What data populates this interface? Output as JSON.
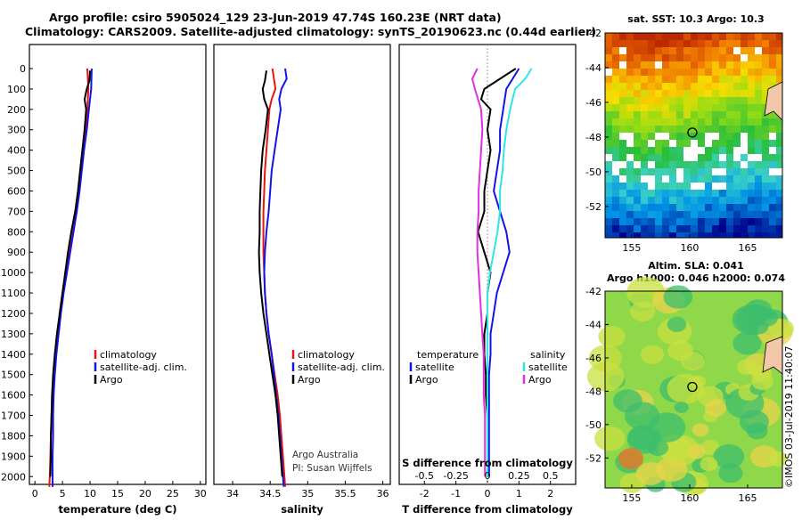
{
  "title_line1": "Argo profile: csiro 5905024_129 23-Jun-2019 47.74S 160.23E (NRT data)",
  "title_line2": "Climatology: CARS2009. Satellite-adjusted climatology: synTS_20190623.nc (0.44d earlier)",
  "colors": {
    "climatology": "#e8140f",
    "satellite": "#1414e6",
    "argo": "#000000",
    "salinity_sat": "#2de6e6",
    "salinity_argo": "#e030e0"
  },
  "depth_ticks": [
    "0",
    "100",
    "200",
    "300",
    "400",
    "500",
    "600",
    "700",
    "800",
    "900",
    "1000",
    "1100",
    "1200",
    "1300",
    "1400",
    "1500",
    "1600",
    "1700",
    "1800",
    "1900",
    "2000"
  ],
  "credit": {
    "line1": "Argo Australia",
    "line2": "PI: Susan Wijffels"
  },
  "watermark": "©IMOS 03-Jul-2019 11:40:07",
  "chart_data": [
    {
      "type": "line",
      "panel": "temperature",
      "xlabel": "temperature (deg C)",
      "ylabel": "",
      "xlim": [
        -1,
        31
      ],
      "ylim": [
        2060,
        0
      ],
      "xticks": [
        "0",
        "5",
        "10",
        "15",
        "20",
        "25",
        "30"
      ],
      "legend": [
        "climatology",
        "satellite-adj. clim.",
        "Argo"
      ],
      "series": [
        {
          "name": "climatology",
          "values": [
            [
              9.5,
              0
            ],
            [
              9.7,
              100
            ],
            [
              9.5,
              200
            ],
            [
              9.2,
              300
            ],
            [
              8.8,
              400
            ],
            [
              8.4,
              500
            ],
            [
              8.0,
              600
            ],
            [
              7.5,
              700
            ],
            [
              6.9,
              800
            ],
            [
              6.3,
              900
            ],
            [
              5.6,
              1000
            ],
            [
              5.0,
              1100
            ],
            [
              4.5,
              1200
            ],
            [
              4.1,
              1300
            ],
            [
              3.7,
              1400
            ],
            [
              3.4,
              1500
            ],
            [
              3.2,
              1600
            ],
            [
              3.0,
              1700
            ],
            [
              2.9,
              1800
            ],
            [
              2.8,
              1900
            ],
            [
              2.7,
              2000
            ],
            [
              2.6,
              2050
            ]
          ]
        },
        {
          "name": "satellite-adj. clim.",
          "values": [
            [
              10.3,
              0
            ],
            [
              10.2,
              100
            ],
            [
              9.8,
              200
            ],
            [
              9.4,
              300
            ],
            [
              8.9,
              400
            ],
            [
              8.5,
              500
            ],
            [
              8.1,
              600
            ],
            [
              7.6,
              700
            ],
            [
              7.0,
              800
            ],
            [
              6.4,
              900
            ],
            [
              5.8,
              1000
            ],
            [
              5.2,
              1100
            ],
            [
              4.7,
              1200
            ],
            [
              4.3,
              1300
            ],
            [
              3.9,
              1400
            ],
            [
              3.6,
              1500
            ],
            [
              3.4,
              1600
            ],
            [
              3.3,
              1700
            ],
            [
              3.3,
              1800
            ],
            [
              3.2,
              1900
            ],
            [
              3.2,
              2000
            ],
            [
              3.2,
              2050
            ]
          ]
        },
        {
          "name": "Argo",
          "values": [
            [
              10.0,
              10
            ],
            [
              9.9,
              60
            ],
            [
              9.4,
              100
            ],
            [
              9.0,
              150
            ],
            [
              9.3,
              200
            ],
            [
              9.0,
              300
            ],
            [
              8.6,
              400
            ],
            [
              8.2,
              500
            ],
            [
              7.8,
              600
            ],
            [
              7.3,
              700
            ],
            [
              6.6,
              800
            ],
            [
              6.0,
              900
            ],
            [
              5.5,
              1000
            ],
            [
              5.0,
              1100
            ],
            [
              4.5,
              1200
            ],
            [
              4.0,
              1300
            ],
            [
              3.6,
              1400
            ],
            [
              3.3,
              1500
            ],
            [
              3.1,
              1600
            ],
            [
              3.0,
              1700
            ],
            [
              2.9,
              1800
            ],
            [
              2.9,
              1900
            ],
            [
              2.8,
              2000
            ]
          ]
        }
      ]
    },
    {
      "type": "line",
      "panel": "salinity",
      "xlabel": "salinity",
      "ylabel": "",
      "xlim": [
        33.75,
        36.1
      ],
      "ylim": [
        2060,
        0
      ],
      "xticks": [
        "34",
        "34.5",
        "35",
        "35.5",
        "36"
      ],
      "legend": [
        "climatology",
        "satellite-adj. clim.",
        "Argo"
      ],
      "series": [
        {
          "name": "climatology",
          "values": [
            [
              34.53,
              0
            ],
            [
              34.57,
              100
            ],
            [
              34.52,
              150
            ],
            [
              34.49,
              200
            ],
            [
              34.47,
              300
            ],
            [
              34.45,
              400
            ],
            [
              34.43,
              500
            ],
            [
              34.42,
              600
            ],
            [
              34.41,
              700
            ],
            [
              34.41,
              800
            ],
            [
              34.41,
              900
            ],
            [
              34.42,
              1000
            ],
            [
              34.43,
              1100
            ],
            [
              34.45,
              1200
            ],
            [
              34.48,
              1300
            ],
            [
              34.52,
              1400
            ],
            [
              34.56,
              1500
            ],
            [
              34.6,
              1600
            ],
            [
              34.63,
              1700
            ],
            [
              34.65,
              1800
            ],
            [
              34.67,
              1900
            ],
            [
              34.69,
              2000
            ],
            [
              34.7,
              2050
            ]
          ]
        },
        {
          "name": "satellite-adj. clim.",
          "values": [
            [
              34.7,
              0
            ],
            [
              34.72,
              50
            ],
            [
              34.65,
              100
            ],
            [
              34.62,
              150
            ],
            [
              34.64,
              200
            ],
            [
              34.6,
              300
            ],
            [
              34.56,
              400
            ],
            [
              34.52,
              500
            ],
            [
              34.5,
              600
            ],
            [
              34.48,
              700
            ],
            [
              34.45,
              800
            ],
            [
              34.43,
              900
            ],
            [
              34.42,
              1000
            ],
            [
              34.43,
              1100
            ],
            [
              34.45,
              1200
            ],
            [
              34.48,
              1300
            ],
            [
              34.52,
              1400
            ],
            [
              34.55,
              1500
            ],
            [
              34.58,
              1600
            ],
            [
              34.61,
              1700
            ],
            [
              34.63,
              1800
            ],
            [
              34.65,
              1900
            ],
            [
              34.67,
              2000
            ],
            [
              34.68,
              2050
            ]
          ]
        },
        {
          "name": "Argo",
          "values": [
            [
              34.45,
              10
            ],
            [
              34.43,
              60
            ],
            [
              34.4,
              100
            ],
            [
              34.42,
              150
            ],
            [
              34.47,
              200
            ],
            [
              34.44,
              300
            ],
            [
              34.4,
              400
            ],
            [
              34.38,
              500
            ],
            [
              34.37,
              600
            ],
            [
              34.36,
              700
            ],
            [
              34.36,
              800
            ],
            [
              34.35,
              900
            ],
            [
              34.36,
              1000
            ],
            [
              34.38,
              1100
            ],
            [
              34.41,
              1200
            ],
            [
              34.45,
              1300
            ],
            [
              34.49,
              1400
            ],
            [
              34.53,
              1500
            ],
            [
              34.57,
              1600
            ],
            [
              34.6,
              1700
            ],
            [
              34.62,
              1800
            ],
            [
              34.64,
              1900
            ],
            [
              34.66,
              2000
            ]
          ]
        }
      ]
    },
    {
      "type": "line",
      "panel": "difference",
      "xlabel": "T difference from climatology",
      "ylabel": "",
      "xlabel2": "S difference from climatology",
      "xlim": [
        -2.8,
        2.8
      ],
      "ylim": [
        2060,
        0
      ],
      "xticks": [
        "-2",
        "-1",
        "0",
        "1",
        "2"
      ],
      "xticks2": [
        "-0.5",
        "-0.25",
        "0",
        "0.25",
        "0.5"
      ],
      "legend_left_title": "temperature",
      "legend_right_title": "salinity",
      "legend": [
        "satellite",
        "Argo",
        "satellite",
        "Argo"
      ],
      "series": [
        {
          "name": "satellite",
          "quantity": "temperature",
          "values": [
            [
              1.0,
              0
            ],
            [
              0.8,
              50
            ],
            [
              0.6,
              100
            ],
            [
              0.5,
              200
            ],
            [
              0.4,
              300
            ],
            [
              0.4,
              400
            ],
            [
              0.3,
              500
            ],
            [
              0.2,
              600
            ],
            [
              0.4,
              700
            ],
            [
              0.6,
              800
            ],
            [
              0.7,
              900
            ],
            [
              0.5,
              1000
            ],
            [
              0.3,
              1100
            ],
            [
              0.2,
              1200
            ],
            [
              0.1,
              1300
            ],
            [
              0.1,
              1400
            ],
            [
              0.05,
              1500
            ],
            [
              0.05,
              1600
            ],
            [
              0.05,
              1700
            ],
            [
              0.05,
              1800
            ],
            [
              0.05,
              1900
            ],
            [
              0.05,
              2000
            ]
          ]
        },
        {
          "name": "Argo",
          "quantity": "temperature",
          "values": [
            [
              0.9,
              0
            ],
            [
              0.4,
              50
            ],
            [
              -0.1,
              100
            ],
            [
              -0.2,
              150
            ],
            [
              0.1,
              200
            ],
            [
              0.0,
              300
            ],
            [
              0.1,
              400
            ],
            [
              0.0,
              500
            ],
            [
              -0.1,
              600
            ],
            [
              -0.1,
              700
            ],
            [
              -0.3,
              800
            ],
            [
              -0.1,
              900
            ],
            [
              0.1,
              1000
            ],
            [
              0.0,
              1100
            ],
            [
              0.0,
              1200
            ],
            [
              -0.1,
              1300
            ],
            [
              -0.1,
              1400
            ],
            [
              -0.05,
              1500
            ],
            [
              -0.05,
              1600
            ],
            [
              0.0,
              1700
            ],
            [
              0.0,
              1800
            ],
            [
              0.0,
              1900
            ],
            [
              0.0,
              2000
            ]
          ]
        },
        {
          "name": "satellite",
          "quantity": "salinity",
          "values": [
            [
              0.35,
              0
            ],
            [
              0.3,
              50
            ],
            [
              0.22,
              100
            ],
            [
              0.18,
              200
            ],
            [
              0.15,
              300
            ],
            [
              0.13,
              400
            ],
            [
              0.12,
              500
            ],
            [
              0.1,
              600
            ],
            [
              0.1,
              700
            ],
            [
              0.08,
              800
            ],
            [
              0.05,
              900
            ],
            [
              0.02,
              1000
            ],
            [
              0.0,
              1100
            ],
            [
              0.0,
              1200
            ],
            [
              0.0,
              1300
            ],
            [
              0.0,
              1400
            ],
            [
              0.0,
              1500
            ],
            [
              0.0,
              1600
            ],
            [
              0.0,
              1700
            ],
            [
              0.0,
              1800
            ],
            [
              0.0,
              1900
            ],
            [
              0.0,
              2000
            ]
          ]
        },
        {
          "name": "Argo",
          "quantity": "salinity",
          "values": [
            [
              -0.08,
              0
            ],
            [
              -0.12,
              50
            ],
            [
              -0.1,
              100
            ],
            [
              -0.05,
              200
            ],
            [
              -0.04,
              300
            ],
            [
              -0.05,
              400
            ],
            [
              -0.06,
              500
            ],
            [
              -0.07,
              600
            ],
            [
              -0.07,
              700
            ],
            [
              -0.08,
              800
            ],
            [
              -0.08,
              900
            ],
            [
              -0.07,
              1000
            ],
            [
              -0.06,
              1100
            ],
            [
              -0.05,
              1200
            ],
            [
              -0.04,
              1300
            ],
            [
              -0.03,
              1400
            ],
            [
              -0.03,
              1500
            ],
            [
              -0.03,
              1600
            ],
            [
              -0.02,
              1700
            ],
            [
              -0.02,
              1800
            ],
            [
              -0.02,
              1900
            ],
            [
              -0.02,
              2000
            ]
          ]
        }
      ]
    },
    {
      "type": "heatmap",
      "panel": "sst_map",
      "title": "sat. SST: 10.3 Argo: 10.3",
      "xticks": [
        "155",
        "160",
        "165"
      ],
      "yticks": [
        "-42",
        "-44",
        "-46",
        "-48",
        "-50",
        "-52"
      ],
      "xlim": [
        152.7,
        168.0
      ],
      "ylim": [
        -53.8,
        -42
      ],
      "argo_position": [
        160.23,
        -47.74
      ]
    },
    {
      "type": "heatmap",
      "panel": "sla_map",
      "title": "Altim. SLA: 0.041",
      "subtitle": "Argo h1000: 0.046 h2000: 0.074",
      "xticks": [
        "155",
        "160",
        "165"
      ],
      "yticks": [
        "-42",
        "-44",
        "-46",
        "-48",
        "-50",
        "-52"
      ],
      "xlim": [
        152.7,
        168.0
      ],
      "ylim": [
        -53.8,
        -42
      ],
      "argo_position": [
        160.23,
        -47.74
      ]
    }
  ]
}
